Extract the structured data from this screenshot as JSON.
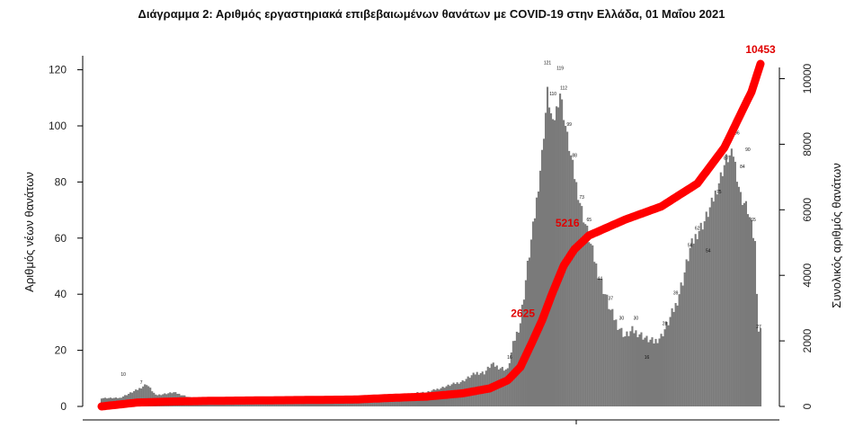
{
  "chart_data": {
    "type": "bar",
    "title": "Διάγραμμα 2: Αριθμός εργαστηριακά επιβεβαιωμένων θανάτων με COVID-19 στην Ελλάδα, 01 Μαΐου 2021",
    "ylabel": "Αριθμός νέων θανάτων",
    "y2label": "Συνολικός αριθμός θανάτων",
    "ylim": [
      0,
      125
    ],
    "y2lim": [
      0,
      10700
    ],
    "yticks": [
      "0",
      "20",
      "40",
      "60",
      "80",
      "100",
      "120"
    ],
    "y2ticks": [
      "0",
      "2000",
      "4000",
      "6000",
      "8000",
      "10000"
    ],
    "colors": {
      "bars": "#7a7a7a",
      "cumulative": "#ff0000",
      "annotations": "#e00000"
    },
    "daily_keypoints": [
      [
        0,
        3
      ],
      [
        10,
        3
      ],
      [
        20,
        6
      ],
      [
        25,
        8
      ],
      [
        30,
        4
      ],
      [
        40,
        5
      ],
      [
        50,
        3
      ],
      [
        55,
        2
      ],
      [
        60,
        2
      ],
      [
        70,
        2
      ],
      [
        80,
        2
      ],
      [
        90,
        1
      ],
      [
        100,
        2
      ],
      [
        110,
        1
      ],
      [
        120,
        2
      ],
      [
        130,
        2
      ],
      [
        140,
        2
      ],
      [
        150,
        2
      ],
      [
        160,
        3
      ],
      [
        170,
        3
      ],
      [
        175,
        5
      ],
      [
        180,
        5
      ],
      [
        185,
        6
      ],
      [
        190,
        7
      ],
      [
        200,
        9
      ],
      [
        205,
        11
      ],
      [
        208,
        12
      ],
      [
        212,
        12
      ],
      [
        216,
        15
      ],
      [
        220,
        14
      ],
      [
        225,
        13
      ],
      [
        228,
        22
      ],
      [
        232,
        30
      ],
      [
        236,
        50
      ],
      [
        240,
        68
      ],
      [
        244,
        90
      ],
      [
        247,
        112
      ],
      [
        250,
        100
      ],
      [
        254,
        112
      ],
      [
        258,
        96
      ],
      [
        262,
        82
      ],
      [
        266,
        70
      ],
      [
        270,
        60
      ],
      [
        274,
        50
      ],
      [
        278,
        42
      ],
      [
        282,
        34
      ],
      [
        286,
        29
      ],
      [
        290,
        25
      ],
      [
        294,
        27
      ],
      [
        298,
        26
      ],
      [
        302,
        24
      ],
      [
        306,
        23
      ],
      [
        310,
        25
      ],
      [
        314,
        30
      ],
      [
        318,
        36
      ],
      [
        322,
        45
      ],
      [
        326,
        56
      ],
      [
        330,
        62
      ],
      [
        334,
        66
      ],
      [
        338,
        72
      ],
      [
        342,
        80
      ],
      [
        346,
        88
      ],
      [
        350,
        90
      ],
      [
        354,
        75
      ],
      [
        358,
        70
      ],
      [
        362,
        58
      ],
      [
        364,
        27
      ]
    ],
    "bar_labels": [
      {
        "d": 12,
        "v": "10"
      },
      {
        "d": 22,
        "v": "7"
      },
      {
        "d": 226,
        "v": "16"
      },
      {
        "d": 247,
        "v": "121"
      },
      {
        "d": 250,
        "v": "110"
      },
      {
        "d": 254,
        "v": "119"
      },
      {
        "d": 256,
        "v": "112"
      },
      {
        "d": 259,
        "v": "99"
      },
      {
        "d": 262,
        "v": "88"
      },
      {
        "d": 266,
        "v": "73"
      },
      {
        "d": 270,
        "v": "65"
      },
      {
        "d": 276,
        "v": "44"
      },
      {
        "d": 282,
        "v": "37"
      },
      {
        "d": 288,
        "v": "30"
      },
      {
        "d": 296,
        "v": "30"
      },
      {
        "d": 302,
        "v": "16"
      },
      {
        "d": 312,
        "v": "28"
      },
      {
        "d": 318,
        "v": "39"
      },
      {
        "d": 326,
        "v": "56"
      },
      {
        "d": 330,
        "v": "62"
      },
      {
        "d": 336,
        "v": "54"
      },
      {
        "d": 342,
        "v": "75"
      },
      {
        "d": 346,
        "v": "87"
      },
      {
        "d": 352,
        "v": "96"
      },
      {
        "d": 355,
        "v": "84"
      },
      {
        "d": 358,
        "v": "90"
      },
      {
        "d": 361,
        "v": "65"
      },
      {
        "d": 364,
        "v": "27"
      }
    ],
    "cumulative_keypoints": [
      [
        0,
        0
      ],
      [
        20,
        120
      ],
      [
        40,
        150
      ],
      [
        60,
        170
      ],
      [
        100,
        190
      ],
      [
        140,
        210
      ],
      [
        160,
        260
      ],
      [
        180,
        300
      ],
      [
        200,
        400
      ],
      [
        215,
        550
      ],
      [
        225,
        800
      ],
      [
        232,
        1200
      ],
      [
        238,
        1900
      ],
      [
        244,
        2625
      ],
      [
        250,
        3500
      ],
      [
        256,
        4300
      ],
      [
        262,
        4800
      ],
      [
        270,
        5216
      ],
      [
        290,
        5700
      ],
      [
        310,
        6100
      ],
      [
        330,
        6800
      ],
      [
        345,
        7900
      ],
      [
        360,
        9600
      ],
      [
        365,
        10453
      ]
    ],
    "annotations": [
      {
        "d": 244,
        "total": 2625,
        "text": "2625"
      },
      {
        "d": 270,
        "total": 5216,
        "text": "5216"
      },
      {
        "d": 365,
        "total": 10453,
        "text": "10453"
      }
    ]
  }
}
